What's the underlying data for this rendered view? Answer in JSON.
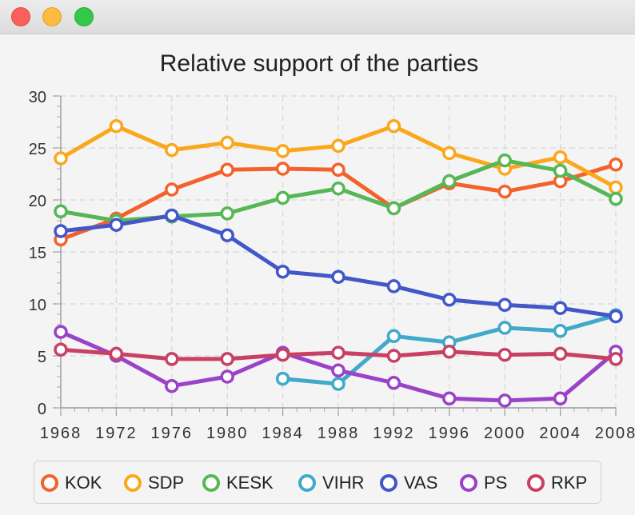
{
  "window": {
    "controls": [
      "close",
      "minimize",
      "maximize"
    ]
  },
  "chart_data": {
    "type": "line",
    "title": "Relative support of the parties",
    "xlabel": "",
    "ylabel": "",
    "x": [
      1968,
      1972,
      1976,
      1980,
      1984,
      1988,
      1992,
      1996,
      2000,
      2004,
      2008
    ],
    "xticks": [
      "1968",
      "1972",
      "1976",
      "1980",
      "1984",
      "1988",
      "1992",
      "1996",
      "2000",
      "2004",
      "2008"
    ],
    "yticks": [
      "0",
      "5",
      "10",
      "15",
      "20",
      "25",
      "30"
    ],
    "xlim": [
      1968,
      2008
    ],
    "ylim": [
      0,
      30
    ],
    "grid": true,
    "legend": "bottom",
    "series": [
      {
        "name": "KOK",
        "color": "#f3622d",
        "values": [
          16.2,
          18.2,
          21.0,
          22.9,
          23.0,
          22.9,
          19.2,
          21.6,
          20.8,
          21.8,
          23.4
        ]
      },
      {
        "name": "SDP",
        "color": "#fba71b",
        "values": [
          24.0,
          27.1,
          24.8,
          25.5,
          24.7,
          25.2,
          27.1,
          24.5,
          23.0,
          24.1,
          21.2
        ]
      },
      {
        "name": "KESK",
        "color": "#57b757",
        "values": [
          18.9,
          18.0,
          18.4,
          18.7,
          20.2,
          21.1,
          19.2,
          21.8,
          23.8,
          22.8,
          20.1
        ]
      },
      {
        "name": "VIHR",
        "color": "#41a9c9",
        "values": [
          null,
          null,
          null,
          null,
          2.8,
          2.3,
          6.9,
          6.3,
          7.7,
          7.4,
          8.9
        ]
      },
      {
        "name": "VAS",
        "color": "#4258c9",
        "values": [
          17.0,
          17.6,
          18.5,
          16.6,
          13.1,
          12.6,
          11.7,
          10.4,
          9.9,
          9.6,
          8.8
        ]
      },
      {
        "name": "PS",
        "color": "#9a42c8",
        "values": [
          7.3,
          5.0,
          2.1,
          3.0,
          5.3,
          3.6,
          2.4,
          0.9,
          0.7,
          0.9,
          5.4
        ]
      },
      {
        "name": "RKP",
        "color": "#c84164",
        "values": [
          5.6,
          5.2,
          4.7,
          4.7,
          5.1,
          5.3,
          5.0,
          5.4,
          5.1,
          5.2,
          4.7
        ]
      }
    ]
  }
}
